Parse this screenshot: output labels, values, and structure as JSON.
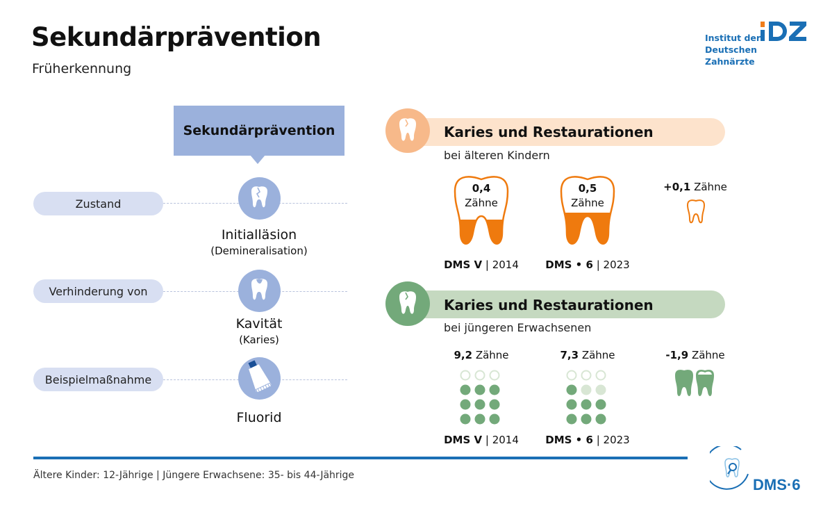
{
  "header": {
    "title": "Sekundärprävention",
    "subtitle": "Früherkennung"
  },
  "logo": {
    "line1": "Institut der",
    "line2": "Deutschen Zahnärzte",
    "mark": "IDZ",
    "accent": "#f07d1a",
    "brand": "#1a6fb5"
  },
  "left": {
    "box_title": "Sekundärprävention",
    "rows": [
      {
        "label": "Zustand",
        "icon": "cracked-tooth-icon",
        "text": "Initialläsion",
        "sub": "(Demineralisation)"
      },
      {
        "label": "Verhinderung von",
        "icon": "decayed-tooth-icon",
        "text": "Kavität",
        "sub": "(Karies)"
      },
      {
        "label": "Beispielmaßnahme",
        "icon": "toothpaste-icon",
        "text": "Fluorid",
        "sub": ""
      }
    ]
  },
  "children": {
    "title": "Karies und Restaurationen",
    "subtitle": "bei älteren Kindern",
    "color": "#ef7a0e",
    "items": [
      {
        "value": "0,4",
        "unit": "Zähne",
        "study": "DMS V",
        "year": "2014"
      },
      {
        "value": "0,5",
        "unit": "Zähne",
        "study": "DMS • 6",
        "year": "2023"
      }
    ],
    "diff": {
      "value": "+0,1",
      "unit": "Zähne"
    }
  },
  "adults": {
    "title": "Karies und Restaurationen",
    "subtitle": "bei jüngeren Erwachsenen",
    "color": "#73a97a",
    "items": [
      {
        "value": "9,2",
        "unit": "Zähne",
        "study": "DMS V",
        "year": "2014"
      },
      {
        "value": "7,3",
        "unit": "Zähne",
        "study": "DMS • 6",
        "year": "2023"
      }
    ],
    "diff": {
      "value": "-1,9",
      "unit": "Zähne"
    }
  },
  "footer": {
    "note": "Ältere Kinder: 12-Jährige | Jüngere Erwachsene: 35- bis 44-Jährige",
    "logo": "DMS·6"
  }
}
